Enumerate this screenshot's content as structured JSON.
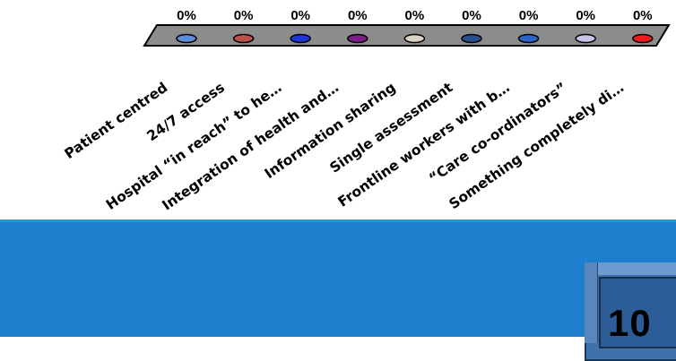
{
  "chart_data": {
    "type": "bar",
    "title": "",
    "xlabel": "",
    "ylabel": "",
    "categories": [
      "Patient centred",
      "24/7 access",
      "Hospital “in reach” to he…",
      "Integration of health and…",
      "Information sharing",
      "Single assessment",
      "Frontline workers with b…",
      "“Care co-ordinators”",
      "Something completely di…"
    ],
    "values": [
      0,
      0,
      0,
      0,
      0,
      0,
      0,
      0,
      0
    ],
    "value_labels": [
      "0%",
      "0%",
      "0%",
      "0%",
      "0%",
      "0%",
      "0%",
      "0%",
      "0%"
    ],
    "colors": [
      "#5b8ed6",
      "#c0504d",
      "#1f37d4",
      "#7a1f86",
      "#d9d3c4",
      "#2b4f8a",
      "#2c64c8",
      "#c9c3e6",
      "#e81d1d"
    ],
    "ylim": [
      0,
      100
    ]
  },
  "counter": {
    "value": "10"
  }
}
